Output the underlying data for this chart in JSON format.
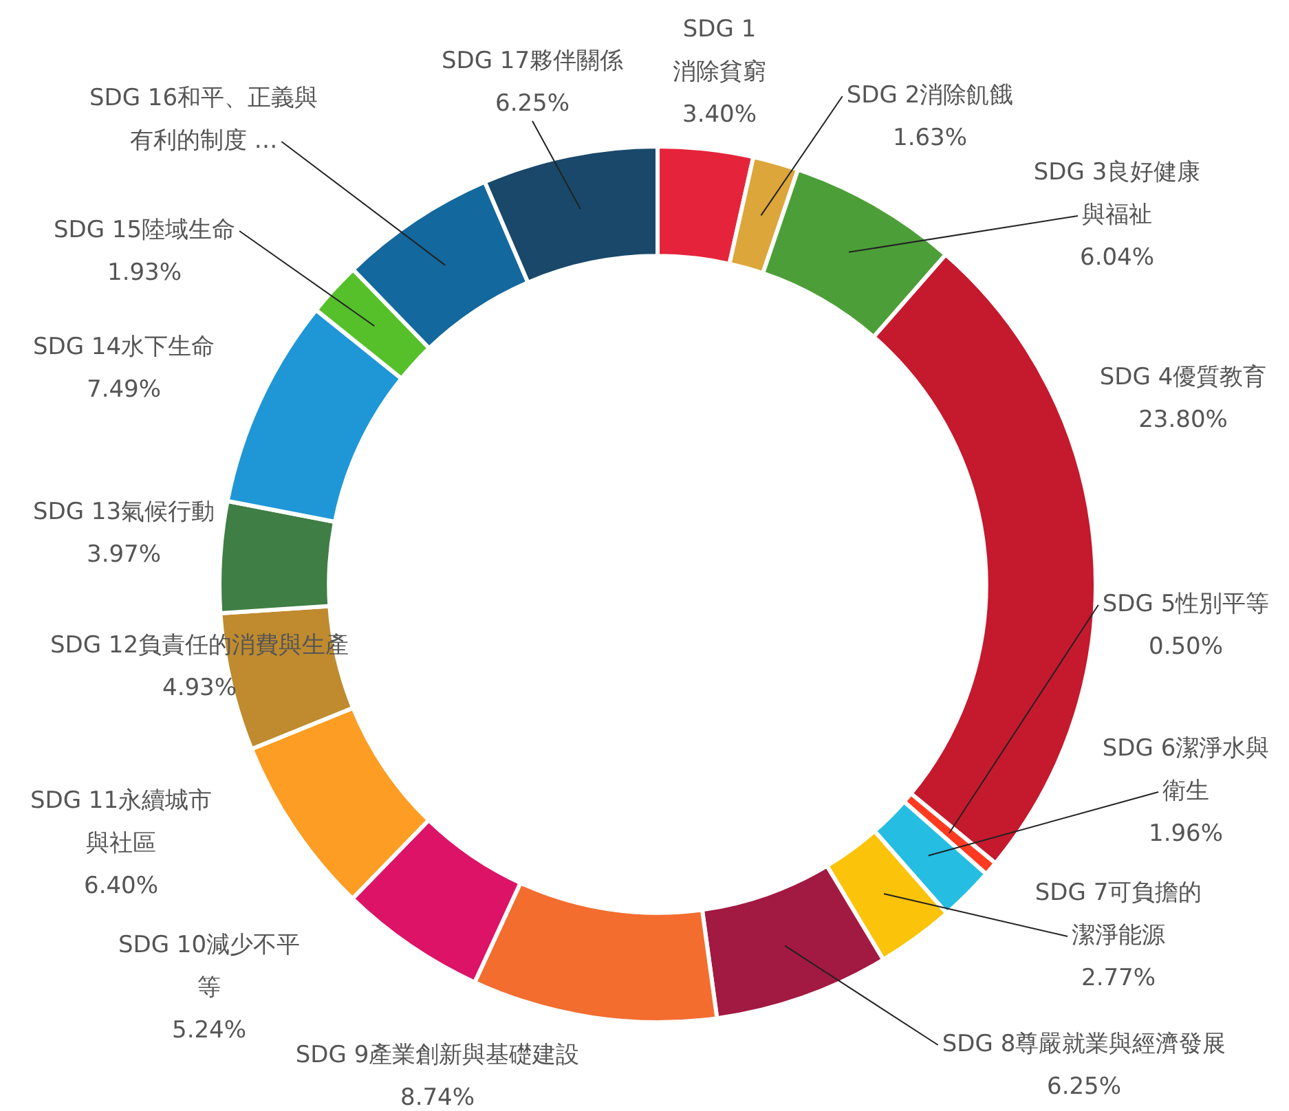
{
  "chart_data": {
    "type": "donut",
    "categories": [
      "SDG 1 消除貧窮",
      "SDG 2消除飢餓",
      "SDG 3良好健康與福祉",
      "SDG 4優質教育",
      "SDG 5性別平等",
      "SDG 6潔淨水與衛生",
      "SDG 7可負擔的潔淨能源",
      "SDG 8尊嚴就業與經濟發展",
      "SDG 9產業創新與基礎建設",
      "SDG 10減少不平等",
      "SDG 11永續城市與社區",
      "SDG 12負責任的消費與生產",
      "SDG 13氣候行動",
      "SDG 14水下生命",
      "SDG 15陸域生命",
      "SDG 16和平、正義與有利的制度 …",
      "SDG 17夥伴關係"
    ],
    "values": [
      3.4,
      1.63,
      6.04,
      23.8,
      0.5,
      1.96,
      2.77,
      6.25,
      8.74,
      5.24,
      6.4,
      4.93,
      3.97,
      7.49,
      1.93,
      5.6,
      6.25
    ],
    "value_labels": [
      "3.40%",
      "1.63%",
      "6.04%",
      "23.80%",
      "0.50%",
      "1.96%",
      "2.77%",
      "6.25%",
      "8.74%",
      "5.24%",
      "6.40%",
      "4.93%",
      "3.97%",
      "7.49%",
      "1.93%",
      null,
      "6.25%"
    ],
    "colors": [
      "#e5243b",
      "#dda63a",
      "#4c9f38",
      "#c5192d",
      "#ff3a21",
      "#26bde2",
      "#fcc30b",
      "#a21942",
      "#f36d2f",
      "#dd1367",
      "#fd9d24",
      "#bf8b2e",
      "#3f7e44",
      "#1f97d6",
      "#56c02b",
      "#13689d",
      "#19486a"
    ],
    "legend": false
  }
}
